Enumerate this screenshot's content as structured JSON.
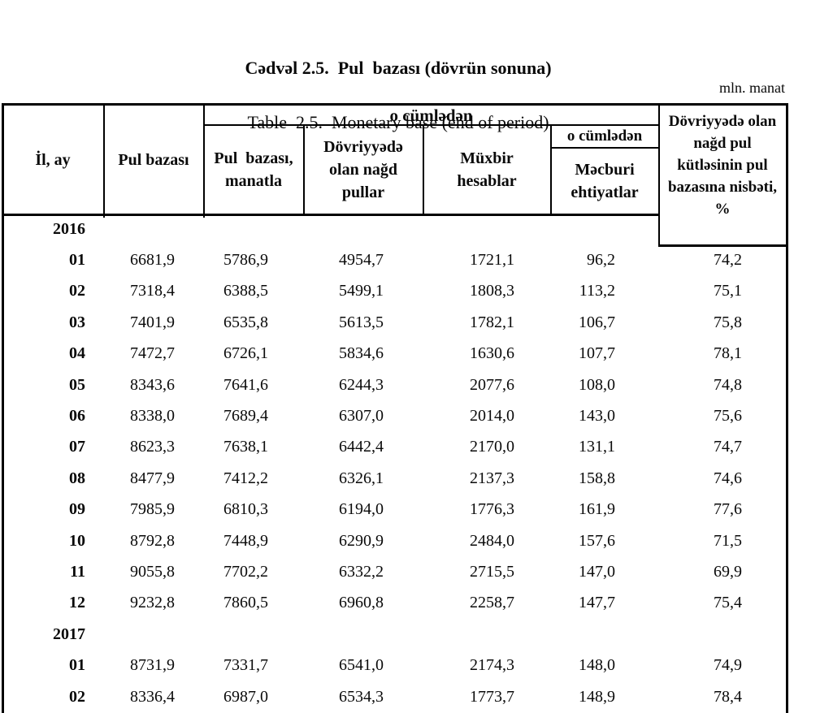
{
  "page": {
    "title_az": "Cədvəl 2.5.  Pul  bazası (dövrün sonuna)",
    "title_en": "Table  2.5.  Monetary base (end of period)",
    "unit_note": "mln. manat"
  },
  "table": {
    "header": {
      "col_year_month": "İl, ay",
      "col_monetary_base": "Pul bazası",
      "including_span": "o cümlədən",
      "col_base_in_manat": "Pul  bazası,\nmanatla",
      "col_cash_in_circulation": "Dövriyyədə\nolan nağd\npullar",
      "col_correspondent_accounts": "Müxbir\nhesablar",
      "including_sub": "o cümlədən",
      "col_required_reserves": "Məcburi\nehtiyatlar",
      "col_cash_to_base_ratio": "Dövriyyədə olan\nnağd pul\nkütləsinin pul\nbazasına nisbəti,\n%"
    },
    "sections": [
      {
        "year": "2016",
        "rows": [
          [
            "01",
            "6681,9",
            "5786,9",
            "4954,7",
            "1721,1",
            "96,2",
            "74,2"
          ],
          [
            "02",
            "7318,4",
            "6388,5",
            "5499,1",
            "1808,3",
            "113,2",
            "75,1"
          ],
          [
            "03",
            "7401,9",
            "6535,8",
            "5613,5",
            "1782,1",
            "106,7",
            "75,8"
          ],
          [
            "04",
            "7472,7",
            "6726,1",
            "5834,6",
            "1630,6",
            "107,7",
            "78,1"
          ],
          [
            "05",
            "8343,6",
            "7641,6",
            "6244,3",
            "2077,6",
            "108,0",
            "74,8"
          ],
          [
            "06",
            "8338,0",
            "7689,4",
            "6307,0",
            "2014,0",
            "143,0",
            "75,6"
          ],
          [
            "07",
            "8623,3",
            "7638,1",
            "6442,4",
            "2170,0",
            "131,1",
            "74,7"
          ],
          [
            "08",
            "8477,9",
            "7412,2",
            "6326,1",
            "2137,3",
            "158,8",
            "74,6"
          ],
          [
            "09",
            "7985,9",
            "6810,3",
            "6194,0",
            "1776,3",
            "161,9",
            "77,6"
          ],
          [
            "10",
            "8792,8",
            "7448,9",
            "6290,9",
            "2484,0",
            "157,6",
            "71,5"
          ],
          [
            "11",
            "9055,8",
            "7702,2",
            "6332,2",
            "2715,5",
            "147,0",
            "69,9"
          ],
          [
            "12",
            "9232,8",
            "7860,5",
            "6960,8",
            "2258,7",
            "147,7",
            "75,4"
          ]
        ]
      },
      {
        "year": "2017",
        "rows": [
          [
            "01",
            "8731,9",
            "7331,7",
            "6541,0",
            "2174,3",
            "148,0",
            "74,9"
          ],
          [
            "02",
            "8336,4",
            "6987,0",
            "6534,3",
            "1773,7",
            "148,9",
            "78,4"
          ]
        ]
      }
    ]
  },
  "colors": {
    "ink": "#000000",
    "paper": "#ffffff"
  }
}
